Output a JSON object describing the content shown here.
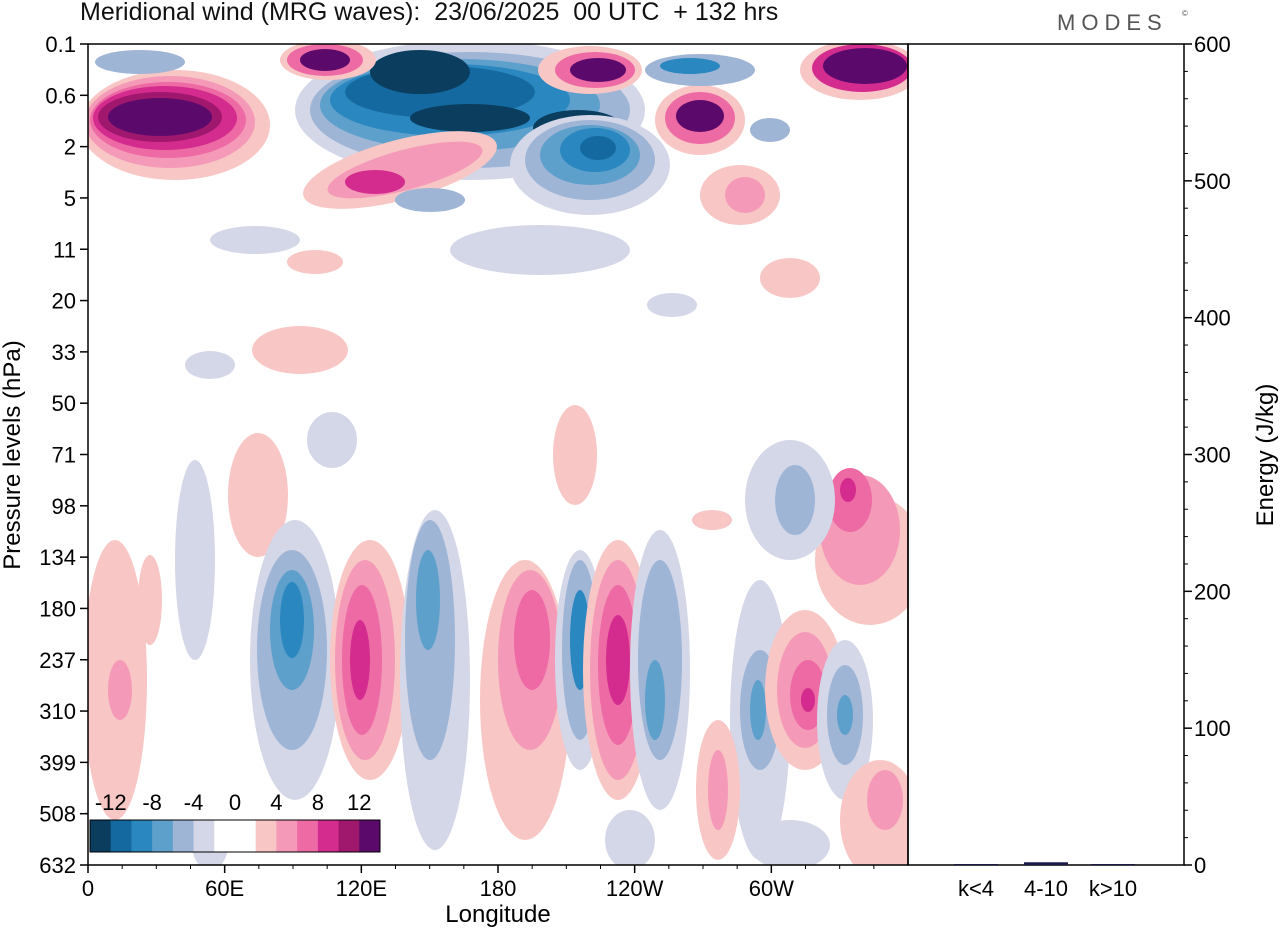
{
  "header": {
    "title": "Meridional wind (MRG waves):  23/06/2025  00 UTC  + 132 hrs",
    "logo": "MODES",
    "logo_mark": "©"
  },
  "chart_data": [
    {
      "type": "heatmap",
      "xlabel": "Longitude",
      "ylabel": "Pressure levels (hPa)",
      "x_ticks": [
        "0",
        "60E",
        "120E",
        "180",
        "120W",
        "60W"
      ],
      "y_ticks": [
        "0.1",
        "0.6",
        "2",
        "5",
        "11",
        "20",
        "33",
        "50",
        "71",
        "98",
        "134",
        "180",
        "237",
        "310",
        "399",
        "508",
        "632"
      ],
      "colorbar": {
        "labels": [
          "-12",
          "-8",
          "-4",
          "0",
          "4",
          "8",
          "12"
        ],
        "colors": [
          "#0a3d5e",
          "#1469a0",
          "#2a87c0",
          "#5ea0cc",
          "#9fb5d6",
          "#d4d7e8",
          "#ffffff",
          "#ffffff",
          "#f8c6c4",
          "#f49ab8",
          "#ed6aa4",
          "#d42c8e",
          "#a0176e",
          "#5b0a6c"
        ]
      }
    },
    {
      "type": "bar",
      "categories": [
        "k<4",
        "4-10",
        "k>10"
      ],
      "values": [
        0.5,
        2,
        0.5
      ],
      "ylabel": "Energy (J/kg)",
      "ylim": [
        0,
        600
      ],
      "y_ticks": [
        "0",
        "100",
        "200",
        "300",
        "400",
        "500",
        "600"
      ]
    }
  ]
}
